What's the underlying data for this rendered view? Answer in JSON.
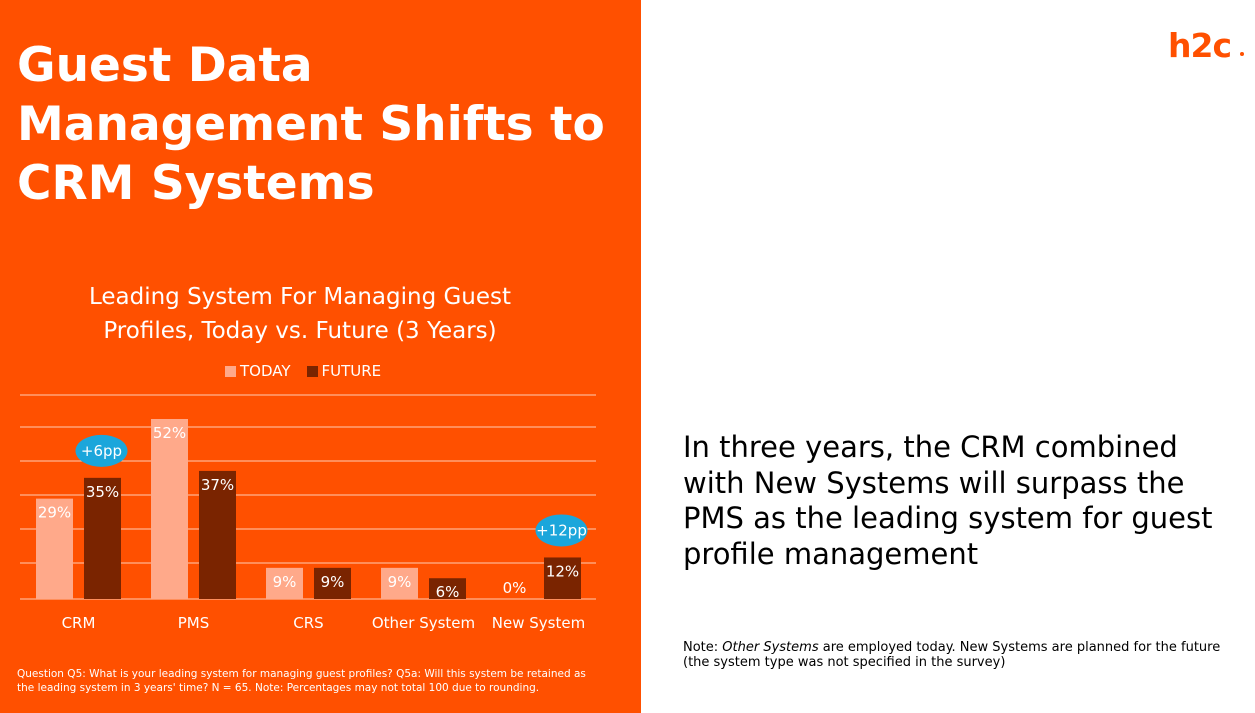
{
  "slide": {
    "title": "Guest Data Management Shifts to CRM Systems",
    "headline": "In three years, the CRM combined with New Systems will surpass the PMS as the leading system for guest profile management",
    "note_prefix": "Note: ",
    "note_italic": "Other Systems",
    "note_rest": " are employed today. New Systems are planned for the future (the system type was not specified in the survey)",
    "footnote": "Question Q5: What is your leading system for managing guest profiles? Q5a: Will this system be retained as the leading system in 3 years' time?  N = 65. Note: Percentages may not total 100 due to rounding.",
    "logo": "h2c"
  },
  "colors": {
    "background_panel": "#FF5000",
    "today": "#FFA98A",
    "future": "#7A2400",
    "badge": "#1BA6DB",
    "logo": "#FF5000"
  },
  "chart_data": {
    "type": "bar",
    "title": "Leading System For Managing Guest Profiles, Today vs. Future (3 Years)",
    "categories": [
      "CRM",
      "PMS",
      "CRS",
      "Other System",
      "New System"
    ],
    "series": [
      {
        "name": "TODAY",
        "values": [
          29,
          52,
          9,
          9,
          0
        ],
        "labels": [
          "29%",
          "52%",
          "9%",
          "9%",
          "0%"
        ]
      },
      {
        "name": "FUTURE",
        "values": [
          35,
          37,
          9,
          6,
          12
        ],
        "labels": [
          "35%",
          "37%",
          "9%",
          "6%",
          "12%"
        ]
      }
    ],
    "annotations": [
      {
        "category": "CRM",
        "text": "+6pp"
      },
      {
        "category": "New System",
        "text": "+12pp"
      }
    ],
    "ylim": [
      0,
      52
    ],
    "grid": true,
    "legend_position": "top"
  }
}
